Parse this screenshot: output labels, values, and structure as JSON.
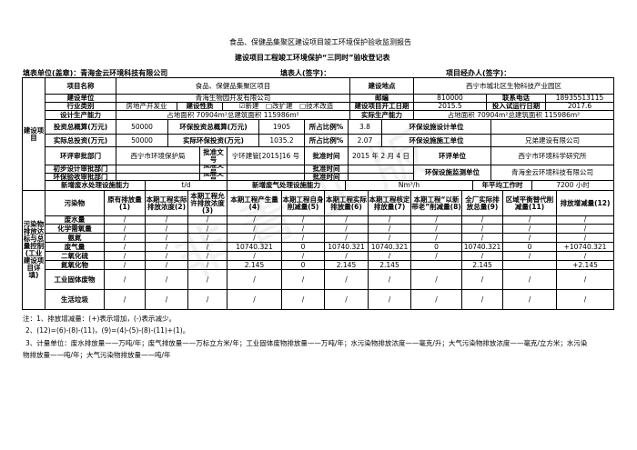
{
  "doc": {
    "title": "食品、保健品集聚区建设项目竣工环境保护验收监测报告",
    "subtitle": "建设项目工程竣工环境保护“三同时”验收登记表",
    "fill_unit": "填表单位(盖章)：青海金云环境科技有限公司",
    "filler": "填表人(签字)：",
    "manager": "项目经办人(签字)："
  },
  "project": {
    "section_label": "建设项目",
    "name_label": "项目名称",
    "name": "食品、保健品集聚区项目",
    "location_label": "建设地点",
    "location": "西宁市城北区生物科技产业园区",
    "unit_label": "建设单位",
    "unit": "青海生物园开发有限公司",
    "zip_label": "邮编",
    "zip": "810000",
    "phone_label": "联系电话",
    "phone": "18935513115",
    "industry_label": "行业类别",
    "industry": "房地产开发业",
    "nature_label": "建设性质",
    "nature": "☑新建　□改扩建　□技术改造",
    "start_label": "建设项目开工日期",
    "start": "2015.5",
    "trial_label": "投入试运行日期",
    "trial": "2017.6",
    "design_cap_label": "设计生产能力",
    "design_cap": "占地面积 70904m²总建筑面积 115986m²",
    "actual_cap_label": "实际生产能力",
    "actual_cap": "占地面积 70904m²总建筑面积 115986m²",
    "budget_label": "投资总概算(万元)",
    "budget": "50000",
    "env_budget_label": "环保投资总概算(万元)",
    "env_budget": "1905",
    "ratio_label": "所占比例%",
    "ratio1": "3.8",
    "design_org_label": "环保设施设计单位",
    "design_org": "",
    "actual_inv_label": "实际总投资(万元)",
    "actual_inv": "50000",
    "actual_env_label": "实际环保投资(万元)",
    "actual_env": "1035.2",
    "ratio2": "2.07",
    "build_org_label": "环保设施施工单位",
    "build_org": "兄弟建设有限公司",
    "eia_dept_label": "环评审批部门",
    "eia_dept": "西宁市环境保护局",
    "doc_no_label": "批准文号",
    "eia_doc": "宁环建管[2015]16 号",
    "date_label": "批准时间",
    "eia_date": "2015 年 2 月 4 日",
    "eia_org_label": "环评单位",
    "eia_org": "西宁市环境科学研究所",
    "prelim_label": "初步设计审批部门",
    "accept_label": "环保验收审批部门",
    "monitor_label": "环保设施监测单位",
    "monitor": "青海金云环境科技有限公司",
    "water_cap_label": "新增废水处理设施能力",
    "water_cap": "t/d",
    "gas_cap_label": "新增废气处理设施能力",
    "gas_cap": "Nm³/h",
    "hours_label": "年平均工作时",
    "hours": "7200 小时"
  },
  "pollution": {
    "section_label": "污染物排放达标与总量控制(工业建设项目详填)",
    "headers": [
      "污染物",
      "原有排放量(1)",
      "本期工程实际排放浓度(2)",
      "本期工程允许排放浓度(3)",
      "本期工程产生量(4)",
      "本期工程自身削减量(5)",
      "本期工程实际排放量(6)",
      "本期工程核定排放量(7)",
      "本期工程“以新带老”削减量(8)",
      "全厂实际排放总量(9)",
      "区域平衡替代削减量(11)",
      "排放增减量(12)"
    ],
    "rows": [
      [
        "废水量",
        "/",
        "/",
        "/",
        "/",
        "/",
        "/",
        "/",
        "/",
        "/",
        "/",
        "/"
      ],
      [
        "化学需氧量",
        "/",
        "/",
        "/",
        "/",
        "/",
        "/",
        "/",
        "/",
        "/",
        "/",
        "/"
      ],
      [
        "氨氮",
        "/",
        "/",
        "/",
        "/",
        "/",
        "/",
        "/",
        "/",
        "/",
        "/",
        "/"
      ],
      [
        "废气量",
        "/",
        "/",
        "/",
        "10740.321",
        "0",
        "10740.321",
        "10740.321",
        "0",
        "10740.321",
        "0",
        "+10740.321"
      ],
      [
        "二氧化硫",
        "/",
        "/",
        "/",
        "/",
        "/",
        "/",
        "/",
        "/",
        "/",
        "/",
        "/"
      ],
      [
        "氮氧化物",
        "/",
        "/",
        "/",
        "2.145",
        "0",
        "2.145",
        "2.145",
        "",
        "2.145",
        "",
        "+2.145"
      ],
      [
        "工业固体废物",
        "/",
        "/",
        "/",
        "/",
        "/",
        "/",
        "/",
        "/",
        "/",
        "/",
        "/"
      ],
      [
        "生活垃圾",
        "/",
        "/",
        "/",
        "/",
        "/",
        "/",
        "/",
        "/",
        "/",
        "/",
        "/"
      ]
    ]
  },
  "notes": [
    "注：1、排放增减量：(+)表示增加，(-)表示减少。",
    "2、(12)=(6)-(8)-(11)，(9)=(4)-(5)-(8)-(11)+(1)。",
    "3、计量单位：废水排放量——万吨/年；废气排放量——万标立方米/年；工业固体废物排放量——万吨/年；水污染物排放浓度——毫克/升；大气污染物排放浓度——毫克/立方米；水污染",
    "物排放量——吨/年；大气污染物排放量——吨/年"
  ]
}
